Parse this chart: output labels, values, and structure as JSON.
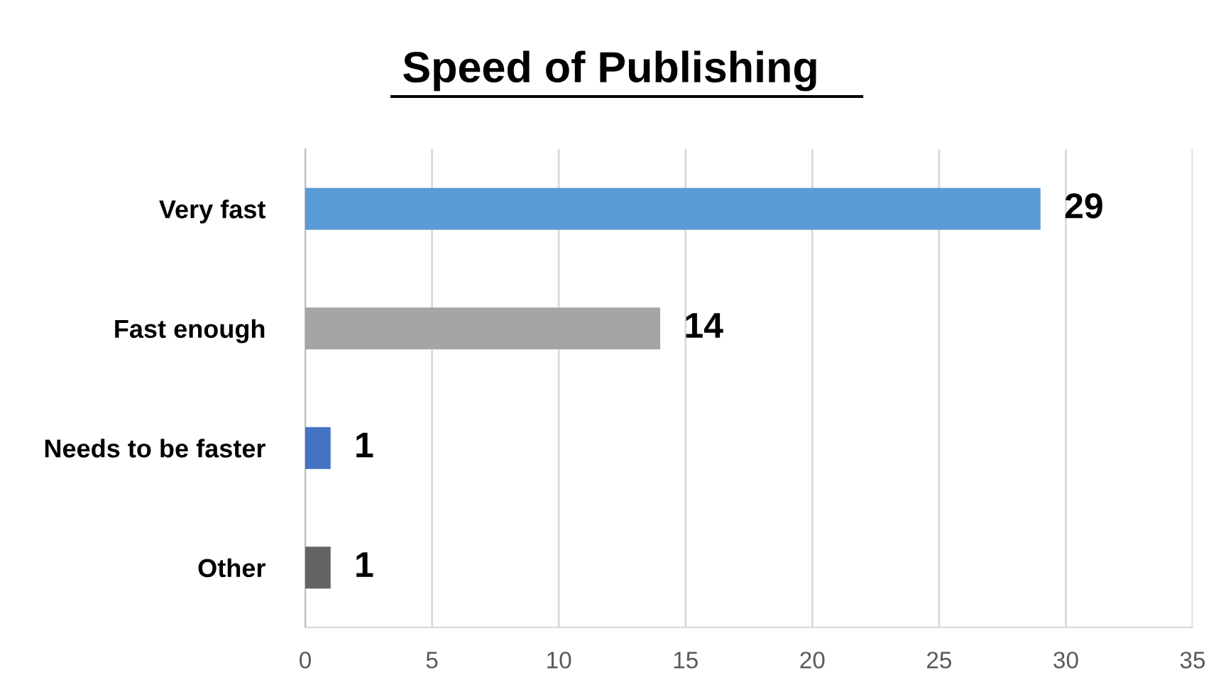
{
  "chart_data": {
    "type": "bar",
    "orientation": "horizontal",
    "title": "Speed of Publishing",
    "categories": [
      "Very fast",
      "Fast enough",
      "Needs to be faster",
      "Other"
    ],
    "values": [
      29,
      14,
      1,
      1
    ],
    "colors": [
      "#5b9bd5",
      "#a5a5a5",
      "#4472c4",
      "#636363"
    ],
    "xlim": [
      0,
      35
    ],
    "xticks": [
      0,
      5,
      10,
      15,
      20,
      25,
      30,
      35
    ],
    "grid": "x",
    "data_labels": true
  }
}
